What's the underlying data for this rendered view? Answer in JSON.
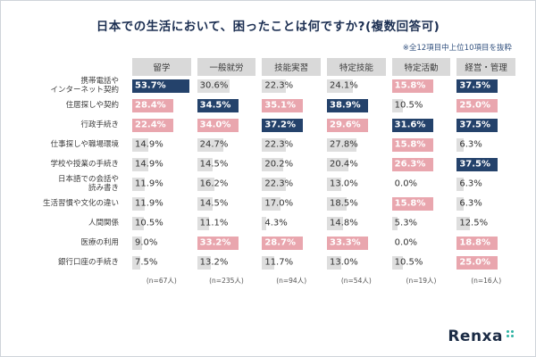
{
  "title": "日本での生活において、困ったことは何ですか?(複数回答可)",
  "note": "※全12項目中上位10項目を抜粋",
  "logo": {
    "text": "Renxa"
  },
  "colors": {
    "navy": "#24426b",
    "pink": "#e9a6ae",
    "gray": "#dedede"
  },
  "chart_data": {
    "type": "table",
    "title": "日本での生活において、困ったことは何ですか?(複数回答可)",
    "note": "※全12項目中上位10項目を抜粋",
    "value_unit": "%",
    "highlight_rule": "navy = highest value in column, pink = 2nd and 3rd highest distinct values in column",
    "columns": [
      {
        "label": "留学",
        "n": "(n=67人)"
      },
      {
        "label": "一般就労",
        "n": "(n=235人)"
      },
      {
        "label": "技能実習",
        "n": "(n=94人)"
      },
      {
        "label": "特定技能",
        "n": "(n=54人)"
      },
      {
        "label": "特定活動",
        "n": "(n=19人)"
      },
      {
        "label": "経営・管理",
        "n": "(n=16人)"
      }
    ],
    "rows": [
      {
        "label": "携帯電話や\nインターネット契約",
        "values": [
          53.7,
          30.6,
          22.3,
          24.1,
          15.8,
          37.5
        ]
      },
      {
        "label": "住居探しや契約",
        "values": [
          28.4,
          34.5,
          35.1,
          38.9,
          10.5,
          25.0
        ]
      },
      {
        "label": "行政手続き",
        "values": [
          22.4,
          34.0,
          37.2,
          29.6,
          31.6,
          37.5
        ]
      },
      {
        "label": "仕事探しや職場環境",
        "values": [
          14.9,
          24.7,
          22.3,
          27.8,
          15.8,
          6.3
        ]
      },
      {
        "label": "学校や授業の手続き",
        "values": [
          14.9,
          14.5,
          20.2,
          20.4,
          26.3,
          37.5
        ]
      },
      {
        "label": "日本語での会話や\n読み書き",
        "values": [
          11.9,
          16.2,
          22.3,
          13.0,
          0.0,
          6.3
        ]
      },
      {
        "label": "生活習慣や文化の違い",
        "values": [
          11.9,
          14.5,
          17.0,
          18.5,
          15.8,
          6.3
        ]
      },
      {
        "label": "人間関係",
        "values": [
          10.5,
          11.1,
          4.3,
          14.8,
          5.3,
          12.5
        ]
      },
      {
        "label": "医療の利用",
        "values": [
          9.0,
          33.2,
          28.7,
          33.3,
          0.0,
          18.8
        ]
      },
      {
        "label": "銀行口座の手続き",
        "values": [
          7.5,
          13.2,
          11.7,
          13.0,
          10.5,
          25.0
        ]
      }
    ]
  }
}
